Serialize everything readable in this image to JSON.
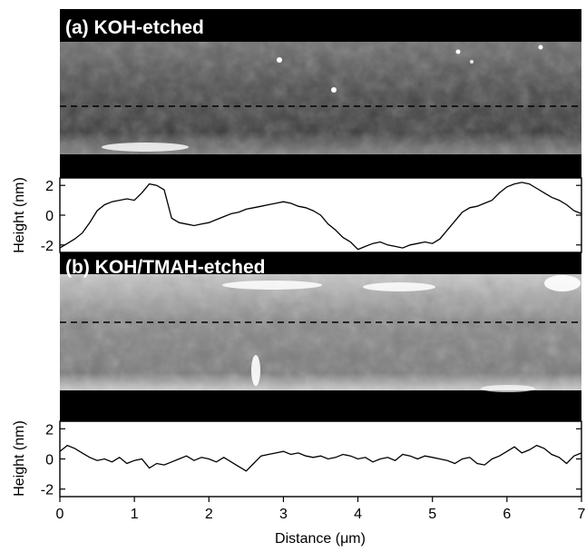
{
  "chart_data": [
    {
      "type": "line",
      "panel_label": "(a) KOH-etched",
      "ylabel": "Height (nm)",
      "xlim": [
        0,
        7
      ],
      "ylim": [
        -2.5,
        2.5
      ],
      "yticks": [
        2,
        0,
        -2
      ],
      "series": [
        {
          "x": [
            0.0,
            0.1,
            0.2,
            0.3,
            0.4,
            0.5,
            0.6,
            0.7,
            0.8,
            0.9,
            1.0,
            1.1,
            1.2,
            1.3,
            1.4,
            1.5,
            1.6,
            1.7,
            1.8,
            1.9,
            2.0,
            2.1,
            2.2,
            2.3,
            2.4,
            2.5,
            2.6,
            2.7,
            2.8,
            2.9,
            3.0,
            3.1,
            3.2,
            3.3,
            3.4,
            3.5,
            3.6,
            3.7,
            3.8,
            3.9,
            4.0,
            4.1,
            4.2,
            4.3,
            4.4,
            4.5,
            4.6,
            4.7,
            4.8,
            4.9,
            5.0,
            5.1,
            5.2,
            5.3,
            5.4,
            5.5,
            5.6,
            5.7,
            5.8,
            5.9,
            6.0,
            6.1,
            6.2,
            6.3,
            6.4,
            6.5,
            6.6,
            6.7,
            6.8,
            6.9,
            7.0
          ],
          "y": [
            -2.2,
            -1.9,
            -1.6,
            -1.2,
            -0.5,
            0.3,
            0.7,
            0.9,
            1.0,
            1.1,
            1.0,
            1.5,
            2.1,
            2.0,
            1.7,
            -0.2,
            -0.5,
            -0.6,
            -0.7,
            -0.6,
            -0.5,
            -0.3,
            -0.1,
            0.1,
            0.2,
            0.4,
            0.5,
            0.6,
            0.7,
            0.8,
            0.9,
            0.8,
            0.6,
            0.5,
            0.3,
            0.0,
            -0.6,
            -1.0,
            -1.5,
            -1.8,
            -2.3,
            -2.1,
            -1.9,
            -1.8,
            -2.0,
            -2.1,
            -2.2,
            -2.0,
            -1.9,
            -1.8,
            -1.9,
            -1.6,
            -1.0,
            -0.4,
            0.2,
            0.5,
            0.6,
            0.8,
            1.0,
            1.5,
            1.9,
            2.1,
            2.2,
            2.1,
            1.8,
            1.5,
            1.2,
            1.0,
            0.7,
            0.3,
            0.1
          ]
        }
      ]
    },
    {
      "type": "line",
      "panel_label": "(b) KOH/TMAH-etched",
      "ylabel": "Height (nm)",
      "xlabel": "Distance (μm)",
      "xlim": [
        0,
        7
      ],
      "ylim": [
        -2.5,
        2.5
      ],
      "xticks": [
        0,
        1,
        2,
        3,
        4,
        5,
        6,
        7
      ],
      "yticks": [
        2,
        0,
        -2
      ],
      "series": [
        {
          "x": [
            0.0,
            0.1,
            0.2,
            0.3,
            0.4,
            0.5,
            0.6,
            0.7,
            0.8,
            0.9,
            1.0,
            1.1,
            1.2,
            1.3,
            1.4,
            1.5,
            1.6,
            1.7,
            1.8,
            1.9,
            2.0,
            2.1,
            2.2,
            2.3,
            2.4,
            2.5,
            2.6,
            2.7,
            2.8,
            2.9,
            3.0,
            3.1,
            3.2,
            3.3,
            3.4,
            3.5,
            3.6,
            3.7,
            3.8,
            3.9,
            4.0,
            4.1,
            4.2,
            4.3,
            4.4,
            4.5,
            4.6,
            4.7,
            4.8,
            4.9,
            5.0,
            5.1,
            5.2,
            5.3,
            5.4,
            5.5,
            5.6,
            5.7,
            5.8,
            5.9,
            6.0,
            6.1,
            6.2,
            6.3,
            6.4,
            6.5,
            6.6,
            6.7,
            6.8,
            6.9,
            7.0
          ],
          "y": [
            0.5,
            0.9,
            0.7,
            0.4,
            0.1,
            -0.1,
            0.0,
            -0.2,
            0.1,
            -0.3,
            -0.1,
            0.0,
            -0.6,
            -0.3,
            -0.4,
            -0.2,
            0.0,
            0.2,
            -0.1,
            0.1,
            0.0,
            -0.2,
            0.1,
            -0.2,
            -0.5,
            -0.8,
            -0.3,
            0.2,
            0.3,
            0.4,
            0.5,
            0.3,
            0.4,
            0.2,
            0.1,
            0.2,
            0.0,
            0.1,
            0.3,
            0.2,
            0.0,
            0.1,
            -0.2,
            0.0,
            0.1,
            -0.1,
            0.3,
            0.2,
            0.0,
            0.2,
            0.1,
            0.0,
            -0.1,
            -0.3,
            0.0,
            0.1,
            -0.3,
            -0.4,
            0.0,
            0.2,
            0.5,
            0.8,
            0.4,
            0.6,
            0.9,
            0.7,
            0.3,
            0.1,
            -0.3,
            0.2,
            0.4
          ]
        }
      ]
    }
  ]
}
